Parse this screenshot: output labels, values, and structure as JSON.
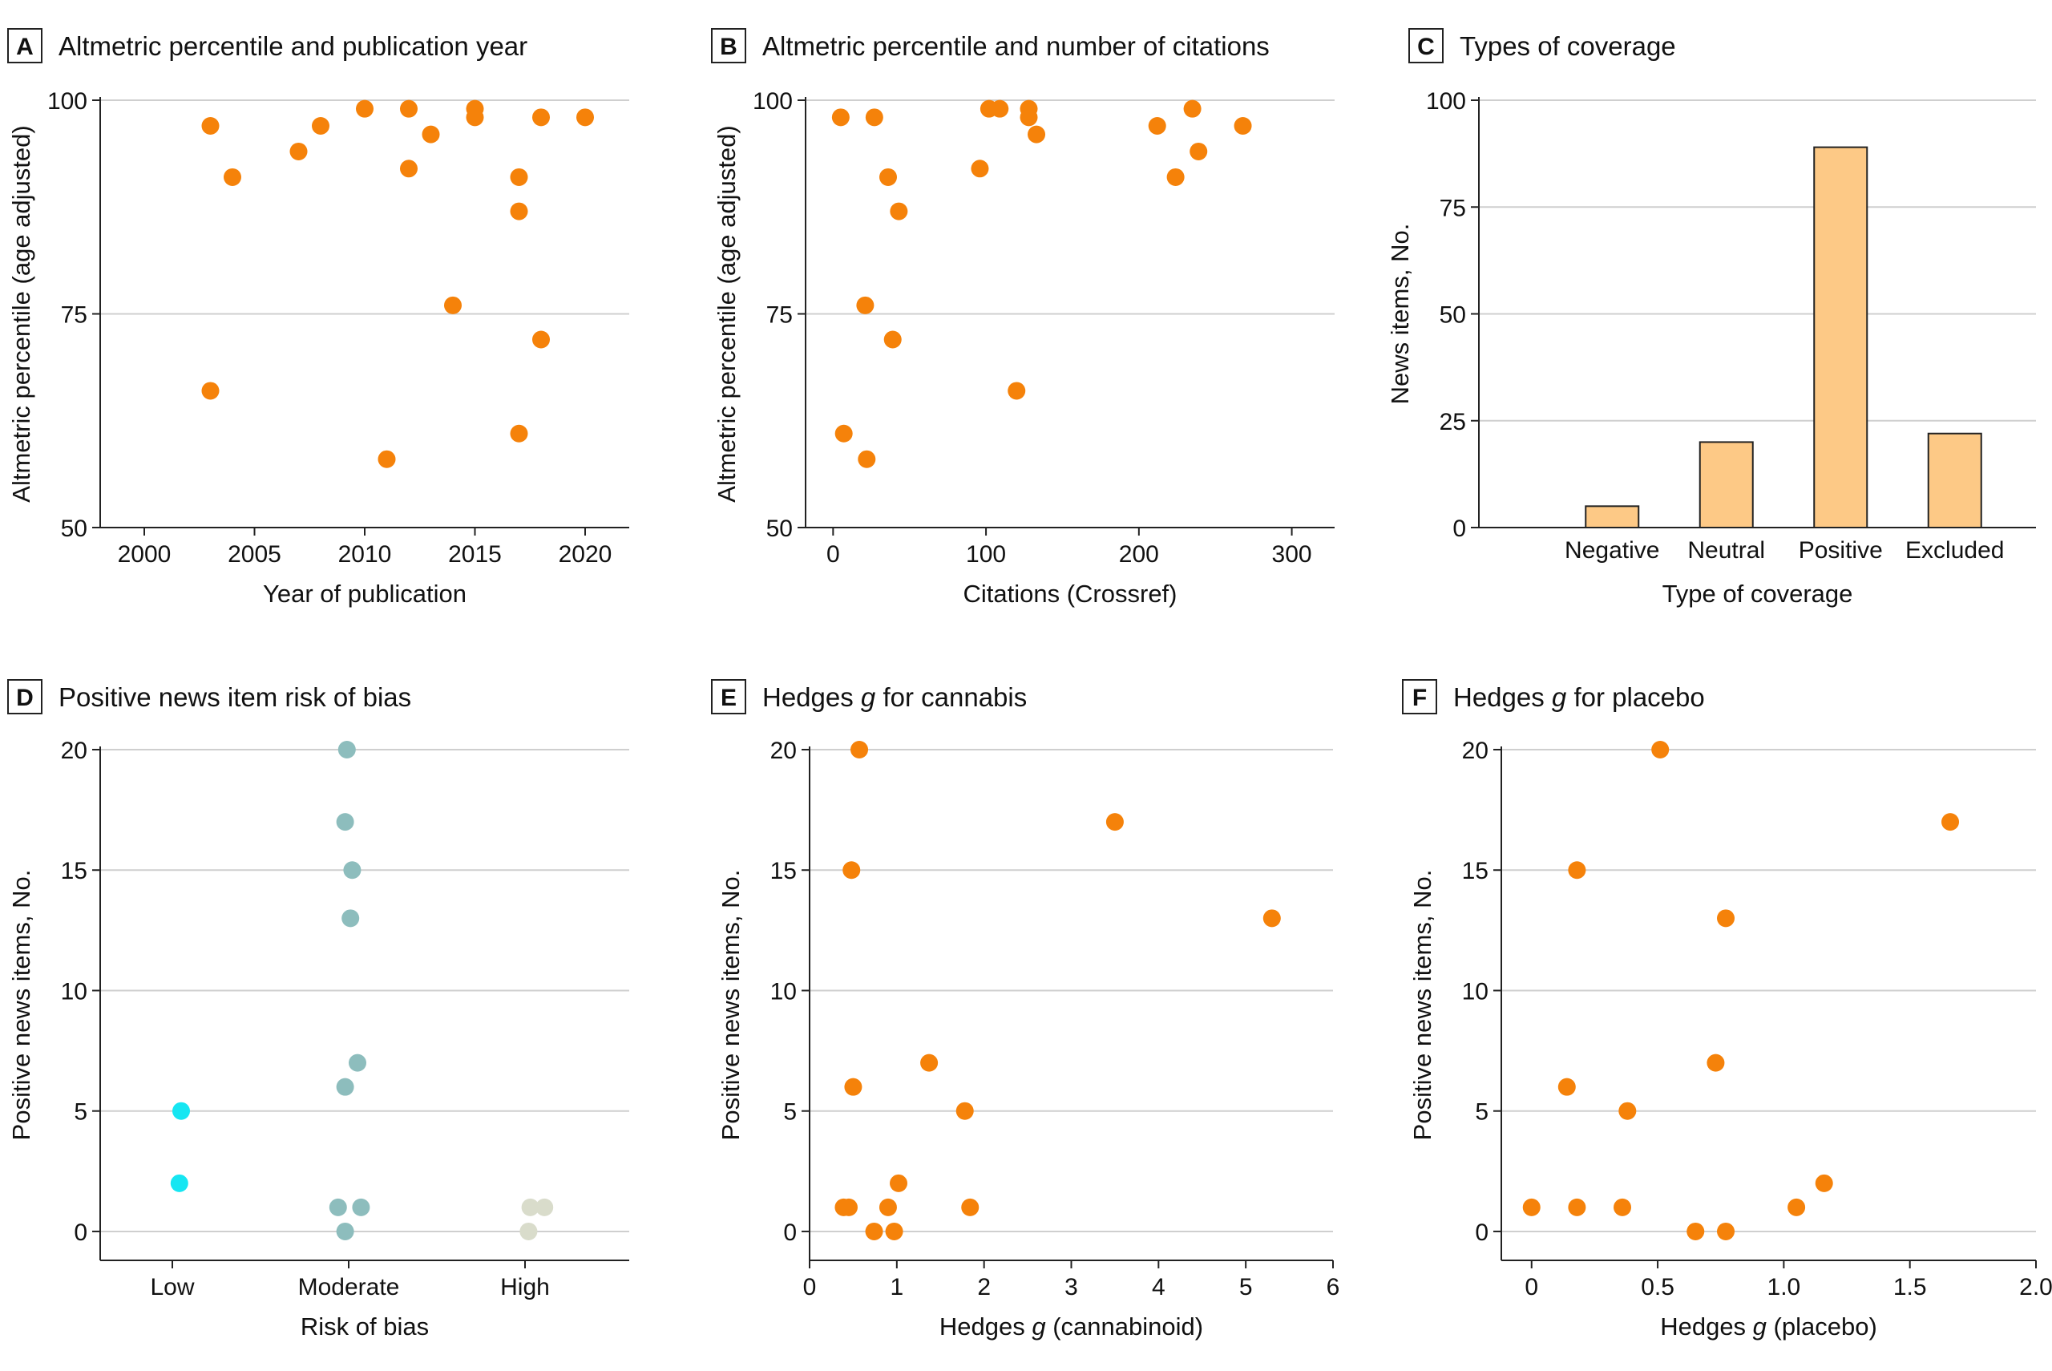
{
  "colors": {
    "point_orange": "#f5820a",
    "bar_fill": "#fdc986",
    "bar_stroke": "#222222",
    "low_cyan": "#16e6f2",
    "moderate_teal": "#8dbdbd",
    "high_beige": "#d9dccb",
    "grid": "#cfcfcf"
  },
  "chart_data": [
    {
      "id": "A",
      "type": "scatter",
      "letter": "A",
      "title": "Altmetric percentile and publication year",
      "xlabel": "Year of publication",
      "ylabel": "Altmetric percentile (age adjusted)",
      "xlim": [
        1998,
        2022
      ],
      "ylim": [
        50,
        100
      ],
      "xticks": [
        2000,
        2005,
        2010,
        2015,
        2020
      ],
      "yticks": [
        50,
        75,
        100
      ],
      "grid": "horizontal",
      "points": [
        {
          "x": 2003,
          "y": 97
        },
        {
          "x": 2003,
          "y": 66
        },
        {
          "x": 2004,
          "y": 91
        },
        {
          "x": 2007,
          "y": 94
        },
        {
          "x": 2008,
          "y": 97
        },
        {
          "x": 2010,
          "y": 99
        },
        {
          "x": 2011,
          "y": 58
        },
        {
          "x": 2012,
          "y": 99
        },
        {
          "x": 2012,
          "y": 92
        },
        {
          "x": 2013,
          "y": 96
        },
        {
          "x": 2014,
          "y": 76
        },
        {
          "x": 2015,
          "y": 99
        },
        {
          "x": 2015,
          "y": 98
        },
        {
          "x": 2017,
          "y": 91
        },
        {
          "x": 2017,
          "y": 87
        },
        {
          "x": 2017,
          "y": 61
        },
        {
          "x": 2018,
          "y": 98
        },
        {
          "x": 2018,
          "y": 72
        },
        {
          "x": 2020,
          "y": 98
        }
      ]
    },
    {
      "id": "B",
      "type": "scatter",
      "letter": "B",
      "title": "Altmetric percentile and number of citations",
      "xlabel": "Citations (Crossref)",
      "ylabel": "Altmetric percentile (age adjusted)",
      "xlim": [
        -18,
        328
      ],
      "ylim": [
        50,
        100
      ],
      "xticks": [
        0,
        100,
        200,
        300
      ],
      "yticks": [
        50,
        75,
        100
      ],
      "grid": "horizontal",
      "points": [
        {
          "x": 5,
          "y": 98
        },
        {
          "x": 7,
          "y": 61
        },
        {
          "x": 21,
          "y": 76
        },
        {
          "x": 22,
          "y": 58
        },
        {
          "x": 27,
          "y": 98
        },
        {
          "x": 36,
          "y": 91
        },
        {
          "x": 39,
          "y": 72
        },
        {
          "x": 43,
          "y": 87
        },
        {
          "x": 96,
          "y": 92
        },
        {
          "x": 102,
          "y": 99
        },
        {
          "x": 109,
          "y": 99
        },
        {
          "x": 120,
          "y": 66
        },
        {
          "x": 128,
          "y": 99
        },
        {
          "x": 128,
          "y": 98
        },
        {
          "x": 133,
          "y": 96
        },
        {
          "x": 212,
          "y": 97
        },
        {
          "x": 224,
          "y": 91
        },
        {
          "x": 235,
          "y": 99
        },
        {
          "x": 239,
          "y": 94
        },
        {
          "x": 268,
          "y": 97
        }
      ]
    },
    {
      "id": "C",
      "type": "bar",
      "letter": "C",
      "title": "Types of coverage",
      "xlabel": "Type of coverage",
      "ylabel": "News items, No.",
      "ylim": [
        0,
        100
      ],
      "yticks": [
        0,
        25,
        50,
        75,
        100
      ],
      "grid": "horizontal",
      "categories": [
        "Negative",
        "Neutral",
        "Positive",
        "Excluded"
      ],
      "values": [
        5,
        20,
        89,
        22
      ]
    },
    {
      "id": "D",
      "type": "scatter",
      "letter": "D",
      "title": "Positive news item risk of bias",
      "xlabel": "Risk of bias",
      "ylabel": "Positive news items, No.",
      "categories": [
        "Low",
        "Moderate",
        "High"
      ],
      "ylim": [
        -1.2,
        20
      ],
      "yticks": [
        0,
        5,
        10,
        15,
        20
      ],
      "grid": "horizontal",
      "points": [
        {
          "category": "Low",
          "y": 5,
          "jitter": 0.05,
          "group": "low"
        },
        {
          "category": "Low",
          "y": 2,
          "jitter": 0.04,
          "group": "low"
        },
        {
          "category": "Moderate",
          "y": 20,
          "jitter": -0.01,
          "group": "moderate"
        },
        {
          "category": "Moderate",
          "y": 17,
          "jitter": -0.02,
          "group": "moderate"
        },
        {
          "category": "Moderate",
          "y": 15,
          "jitter": 0.02,
          "group": "moderate"
        },
        {
          "category": "Moderate",
          "y": 13,
          "jitter": 0.01,
          "group": "moderate"
        },
        {
          "category": "Moderate",
          "y": 7,
          "jitter": 0.05,
          "group": "moderate"
        },
        {
          "category": "Moderate",
          "y": 6,
          "jitter": -0.02,
          "group": "moderate"
        },
        {
          "category": "Moderate",
          "y": 1,
          "jitter": -0.06,
          "group": "moderate"
        },
        {
          "category": "Moderate",
          "y": 1,
          "jitter": 0.07,
          "group": "moderate"
        },
        {
          "category": "Moderate",
          "y": 0,
          "jitter": -0.02,
          "group": "moderate"
        },
        {
          "category": "High",
          "y": 1,
          "jitter": 0.03,
          "group": "high"
        },
        {
          "category": "High",
          "y": 1,
          "jitter": 0.11,
          "group": "high"
        },
        {
          "category": "High",
          "y": 0,
          "jitter": 0.02,
          "group": "high"
        }
      ]
    },
    {
      "id": "E",
      "type": "scatter",
      "letter": "E",
      "title_pre": "Hedges ",
      "title_ital": "g",
      "title_post": " for cannabis",
      "xlabel_pre": "Hedges ",
      "xlabel_ital": "g",
      "xlabel_post": " (cannabinoid)",
      "ylabel": "Positive news items, No.",
      "xlim": [
        0,
        6
      ],
      "ylim": [
        -1.2,
        20
      ],
      "xticks": [
        0,
        1,
        2,
        3,
        4,
        5,
        6
      ],
      "yticks": [
        0,
        5,
        10,
        15,
        20
      ],
      "grid": "horizontal",
      "points": [
        {
          "x": 0.57,
          "y": 20
        },
        {
          "x": 3.5,
          "y": 17
        },
        {
          "x": 0.48,
          "y": 15
        },
        {
          "x": 5.3,
          "y": 13
        },
        {
          "x": 1.37,
          "y": 7
        },
        {
          "x": 0.5,
          "y": 6
        },
        {
          "x": 1.78,
          "y": 5
        },
        {
          "x": 1.02,
          "y": 2
        },
        {
          "x": 0.39,
          "y": 1
        },
        {
          "x": 0.45,
          "y": 1
        },
        {
          "x": 0.9,
          "y": 1
        },
        {
          "x": 1.84,
          "y": 1
        },
        {
          "x": 0.74,
          "y": 0
        },
        {
          "x": 0.97,
          "y": 0
        }
      ]
    },
    {
      "id": "F",
      "type": "scatter",
      "letter": "F",
      "title_pre": "Hedges ",
      "title_ital": "g",
      "title_post": " for placebo",
      "xlabel_pre": "Hedges ",
      "xlabel_ital": "g",
      "xlabel_post": " (placebo)",
      "ylabel": "Positive news items, No.",
      "xlim": [
        -0.12,
        2.0
      ],
      "ylim": [
        -1.2,
        20
      ],
      "xticks": [
        0,
        0.5,
        1.0,
        1.5,
        2.0
      ],
      "xticklabels": [
        "0",
        "0.5",
        "1.0",
        "1.5",
        "2.0"
      ],
      "yticks": [
        0,
        5,
        10,
        15,
        20
      ],
      "grid": "horizontal",
      "points": [
        {
          "x": 0.51,
          "y": 20
        },
        {
          "x": 1.66,
          "y": 17
        },
        {
          "x": 0.18,
          "y": 15
        },
        {
          "x": 0.77,
          "y": 13
        },
        {
          "x": 0.73,
          "y": 7
        },
        {
          "x": 0.14,
          "y": 6
        },
        {
          "x": 0.38,
          "y": 5
        },
        {
          "x": 1.16,
          "y": 2
        },
        {
          "x": 0.0,
          "y": 1
        },
        {
          "x": 0.18,
          "y": 1
        },
        {
          "x": 0.36,
          "y": 1
        },
        {
          "x": 1.05,
          "y": 1
        },
        {
          "x": 0.65,
          "y": 0
        },
        {
          "x": 0.77,
          "y": 0
        }
      ]
    }
  ]
}
